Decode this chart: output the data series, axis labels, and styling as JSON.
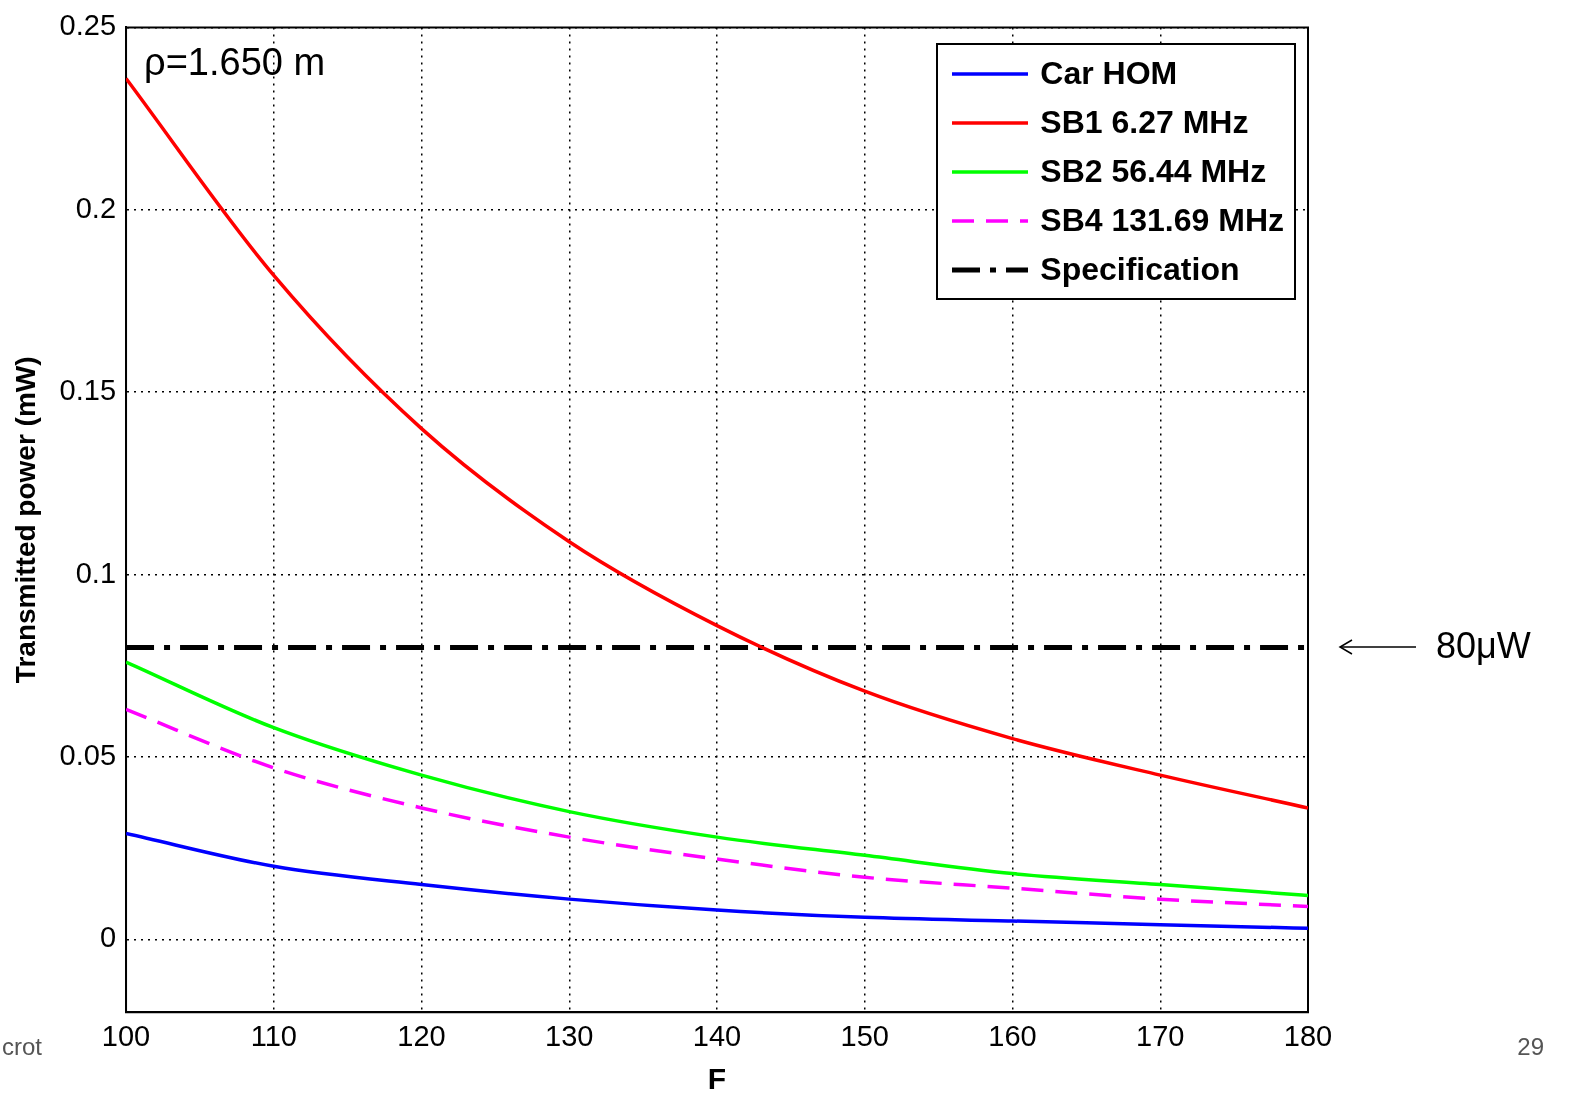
{
  "chart_data": {
    "type": "line",
    "xlabel": "F",
    "ylabel": "Transmitted power (mW)",
    "x": [
      100,
      110,
      120,
      130,
      140,
      150,
      160,
      170,
      180
    ],
    "series": [
      {
        "name": "Car HOM",
        "color": "#0000ff",
        "values": [
          0.029,
          0.02,
          0.015,
          0.011,
          0.008,
          0.006,
          0.005,
          0.004,
          0.003
        ]
      },
      {
        "name": "SB1 6.27 MHz",
        "color": "#ff0000",
        "values": [
          0.236,
          0.182,
          0.14,
          0.109,
          0.086,
          0.068,
          0.055,
          0.045,
          0.036
        ]
      },
      {
        "name": "SB2 56.44 MHz",
        "color": "#00ff00",
        "values": [
          0.076,
          0.058,
          0.045,
          0.035,
          0.028,
          0.023,
          0.018,
          0.015,
          0.012
        ]
      },
      {
        "name": "SB4 131.69 MHz",
        "color": "#ff00ff",
        "line_style": "dashed",
        "values": [
          0.063,
          0.047,
          0.036,
          0.028,
          0.022,
          0.017,
          0.014,
          0.011,
          0.009
        ]
      },
      {
        "name": "Specification",
        "color": "#000000",
        "line_style": "dashed",
        "values": [
          0.08,
          0.08,
          0.08,
          0.08,
          0.08,
          0.08,
          0.08,
          0.08,
          0.08
        ]
      }
    ],
    "xlim": [
      100,
      180
    ],
    "xticks": [
      100,
      110,
      120,
      130,
      140,
      150,
      160,
      170,
      180
    ],
    "ylim": [
      -0.02,
      0.25
    ],
    "yticks": [
      0,
      0.05,
      0.1,
      0.15,
      0.2,
      0.25
    ],
    "grid": true,
    "legend": "top right",
    "marker": "none",
    "annotations": [
      "ρ=1.650 m",
      "80μW",
      "crot",
      "29"
    ]
  }
}
